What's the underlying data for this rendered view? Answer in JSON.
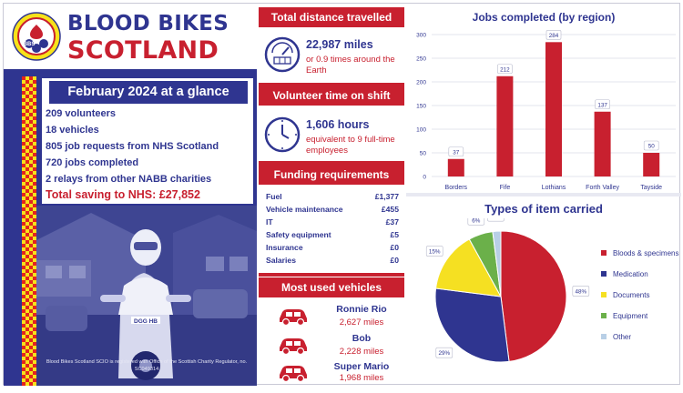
{
  "brand": {
    "line1": "BLOOD BIKES",
    "line2": "SCOTLAND",
    "logo_text": "BBS"
  },
  "glance": {
    "title": "February 2024 at a glance",
    "stats": [
      "209 volunteers",
      "18 vehicles",
      "805 job requests from NHS Scotland",
      "720 jobs completed",
      "2 relays from other NABB charities"
    ],
    "total": "Total saving to NHS: £27,852"
  },
  "photo": {
    "plate": "DGG HB",
    "footnote": "Blood Bikes Scotland SCIO is registered with Office of the Scottish Charity Regulator, no. SC049314"
  },
  "distance": {
    "title": "Total distance travelled",
    "value": "22,987 miles",
    "note": "or 0.9 times around the Earth"
  },
  "volunteer": {
    "title": "Volunteer time on shift",
    "value": "1,606 hours",
    "note": "equivalent to 9 full-time employees"
  },
  "funding": {
    "title": "Funding requirements",
    "rows": [
      {
        "label": "Fuel",
        "value": "£1,377"
      },
      {
        "label": "Vehicle maintenance",
        "value": "£455"
      },
      {
        "label": "IT",
        "value": "£37"
      },
      {
        "label": "Safety equipment",
        "value": "£5"
      },
      {
        "label": "Insurance",
        "value": "£0"
      },
      {
        "label": "Salaries",
        "value": "£0"
      }
    ]
  },
  "vehicles": {
    "title": "Most used vehicles",
    "items": [
      {
        "name": "Ronnie Rio",
        "miles": "2,627 miles"
      },
      {
        "name": "Bob",
        "miles": "2,228 miles"
      },
      {
        "name": "Super Mario",
        "miles": "1,968 miles"
      }
    ]
  },
  "chart_data": [
    {
      "type": "bar",
      "title": "Jobs completed (by region)",
      "categories": [
        "Borders",
        "Fife",
        "Lothians",
        "Forth Valley",
        "Tayside"
      ],
      "values": [
        37,
        212,
        284,
        137,
        50
      ],
      "ylim": [
        0,
        300
      ],
      "yticks": [
        0,
        50,
        100,
        150,
        200,
        250,
        300
      ],
      "color": "#c8202f",
      "data_labels": true,
      "grid": true
    },
    {
      "type": "pie",
      "title": "Types of item carried",
      "labels": [
        "Bloods & specimens",
        "Medication",
        "Documents",
        "Equipment",
        "Other"
      ],
      "values": [
        48,
        29,
        15,
        6,
        2
      ],
      "value_labels": [
        "48%",
        "29%",
        "15%",
        "6%",
        "2%"
      ],
      "colors": [
        "#c8202f",
        "#2f3590",
        "#f5e022",
        "#6bb04a",
        "#b8cfe6"
      ],
      "legend": "right"
    }
  ]
}
